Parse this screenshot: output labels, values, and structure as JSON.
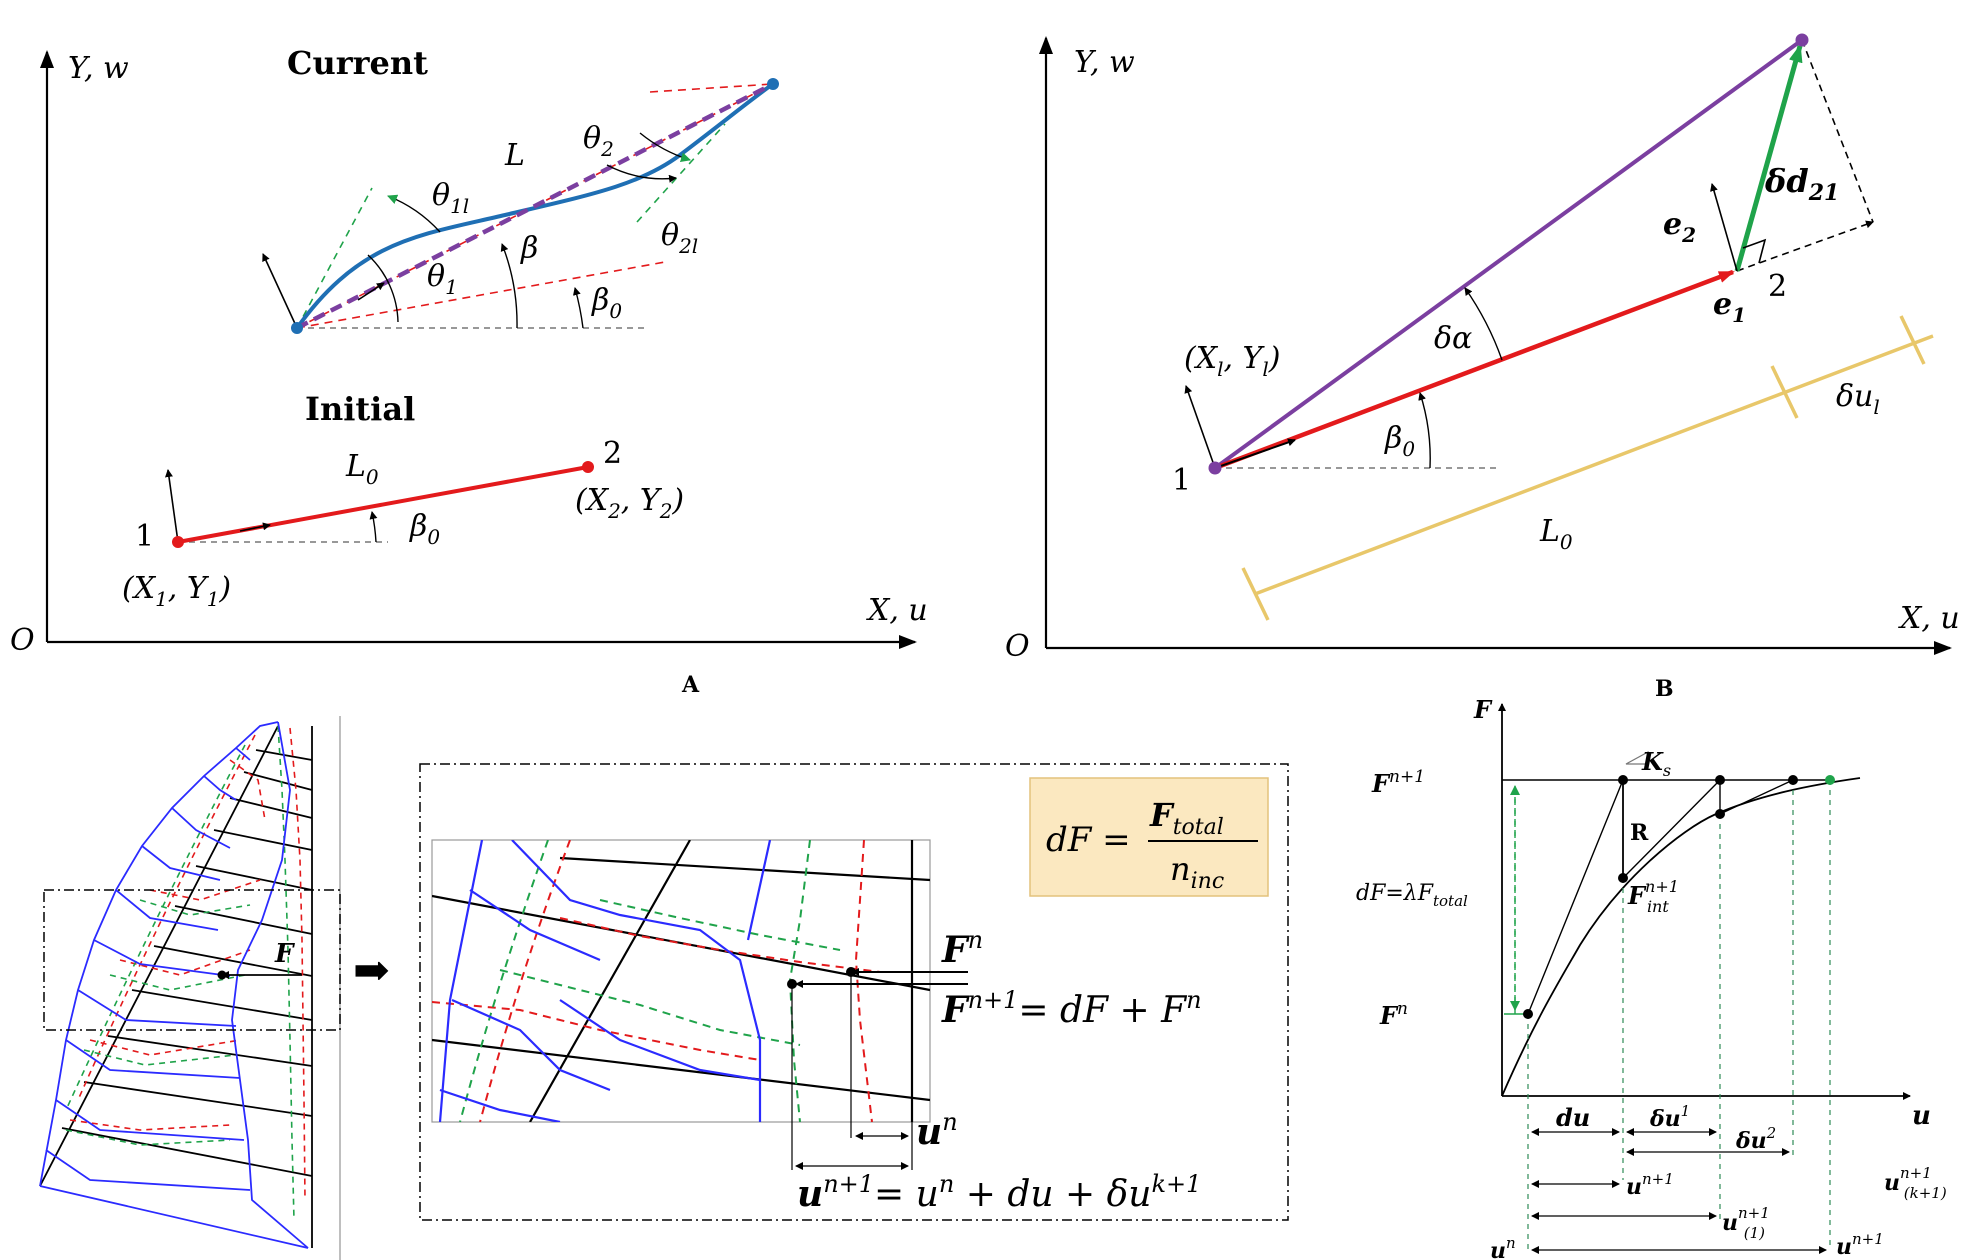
{
  "panelA": {
    "origin": "O",
    "y_axis": "Y, w",
    "x_axis": "X, u",
    "current": "Current",
    "initial": "Initial",
    "L": "L",
    "L0": "L",
    "L0_sub": "0",
    "theta1l": "θ",
    "theta1l_sub": "1l",
    "theta1": "θ",
    "theta1_sub": "1",
    "theta2": "θ",
    "theta2_sub": "2",
    "theta2l": "θ",
    "theta2l_sub": "2l",
    "beta": "β",
    "beta0": "β",
    "beta0_sub": "0",
    "node1": "1",
    "node2": "2",
    "X1Y1": "(X",
    "X1Y1_a": "1",
    "X1Y1_b": ", Y",
    "X1Y1_c": "1",
    "X1Y1_d": ")",
    "X2Y2": "(X",
    "X2Y2_a": "2",
    "X2Y2_b": ", Y",
    "X2Y2_c": "2",
    "X2Y2_d": ")",
    "caption": "A"
  },
  "panelB": {
    "origin": "O",
    "y_axis": "Y, w",
    "x_axis": "X, u",
    "XlYl": "(X",
    "XlYl_a": "l",
    "XlYl_b": ", Y",
    "XlYl_c": "l",
    "XlYl_d": ")",
    "dalpha": "δα",
    "beta0": "β",
    "beta0_sub": "0",
    "node1": "1",
    "node2": "2",
    "e1": "e",
    "e1_sub": "1",
    "e2": "e",
    "e2_sub": "2",
    "dd21": "δd",
    "dd21_sub": "21",
    "dul": "δu",
    "dul_sub": "l",
    "L0": "L",
    "L0_sub": "0",
    "caption": "B"
  },
  "panelC": {
    "F": "F",
    "arrow": "➡",
    "formula_dF": "dF =",
    "formula_num": "F",
    "formula_num_sub": "total",
    "formula_den": "n",
    "formula_den_sub": "inc",
    "Fn": "F",
    "Fn_sup": "n",
    "Fn1": "F",
    "Fn1_sup": "n+1",
    "Fn1_rhs": "= dF + F",
    "Fn1_rhs_sup": "n",
    "un": "u",
    "un_sup": "n",
    "un1": "u",
    "un1_sup": "n+1",
    "un1_rhs": "= u",
    "un1_rhs_sup": "n",
    "un1_rhs2": " + du + δu",
    "un1_rhs2_sup": "k+1"
  },
  "panelD": {
    "F_axis": "F",
    "u_axis": "u",
    "Fn1": "F",
    "Fn1_sup": "n+1",
    "Fn": "F",
    "Fn_sup": "n",
    "Ks": "K",
    "Ks_sub": "s",
    "R": "R",
    "Fint": "F",
    "Fint_sup": "n+1",
    "Fint_sub": "int",
    "dF": "dF=λF",
    "dF_sub": "total",
    "du": "du",
    "du1": "δu",
    "du1_sup": "1",
    "du2": "δu",
    "du2_sup": "2",
    "un1": "u",
    "un1_sup": "n+1",
    "un1_1": "u",
    "un1_1_sup": "n+1",
    "un1_1_sub": "(1)",
    "un1_k": "u",
    "un1_k_sup": "n+1",
    "un1_k_sub": "(k+1)",
    "un": "u",
    "un_sup": "n",
    "un1_b": "u",
    "un1_b_sup": "n+1"
  },
  "colors": {
    "red": "#e31a1c",
    "blue": "#1f6fb4",
    "purple": "#7b3fa0",
    "green": "#1fa34a",
    "gold": "#e8c76a",
    "mesh_blue": "#2b2bff",
    "formula_bg": "#fbe8c0"
  }
}
